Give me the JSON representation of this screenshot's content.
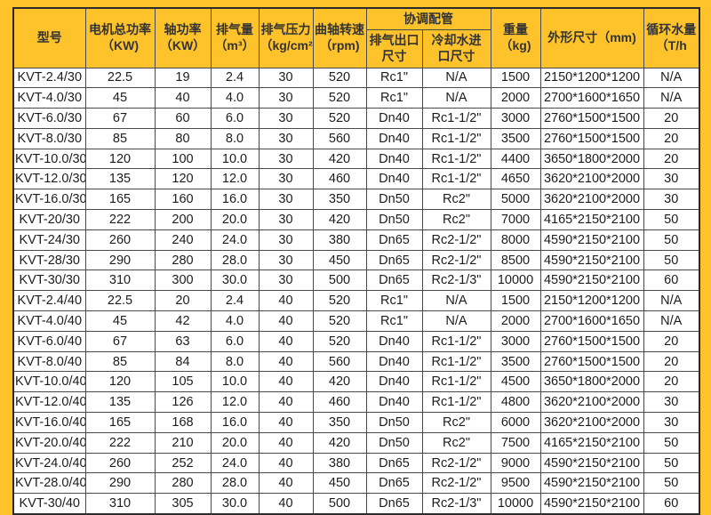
{
  "page": {
    "background_color": "#fec32b",
    "header_background": "#fec32b",
    "grid_border_color": "#4a4a4a",
    "outer_border_color": "#2b2b2b"
  },
  "table": {
    "header": {
      "model": "型号",
      "motor_power": "电机总功率\n（KW)",
      "shaft_power": "轴功率\n（KW）",
      "displacement": "排气量\n（m³）",
      "pressure": "排气压力\n（kg/cm²）",
      "speed": "曲轴转速\n（rpm)",
      "piping_group": "协调配管",
      "outlet": "排气出口\n尺寸",
      "inlet": "冷却水进\n口尺寸",
      "weight": "重量\n（kg)",
      "dimensions": "外形尺寸（mm)",
      "water": "循环水量\n（T/h"
    },
    "rows": [
      [
        "KVT-2.4/30",
        "22.5",
        "19",
        "2.4",
        "30",
        "520",
        "Rc1\"",
        "N/A",
        "1500",
        "2150*1200*1200",
        "N/A"
      ],
      [
        "KVT-4.0/30",
        "45",
        "40",
        "4.0",
        "30",
        "520",
        "Rc1\"",
        "N/A",
        "2000",
        "2700*1600*1650",
        "N/A"
      ],
      [
        "KVT-6.0/30",
        "67",
        "60",
        "6.0",
        "30",
        "520",
        "Dn40",
        "Rc1-1/2\"",
        "3000",
        "2760*1500*1500",
        "20"
      ],
      [
        "KVT-8.0/30",
        "85",
        "80",
        "8.0",
        "30",
        "560",
        "Dn40",
        "Rc1-1/2\"",
        "3500",
        "2760*1500*1500",
        "20"
      ],
      [
        "KVT-10.0/30",
        "120",
        "100",
        "10.0",
        "30",
        "420",
        "Dn40",
        "Rc1-1/2\"",
        "4400",
        "3650*1800*2000",
        "20"
      ],
      [
        "KVT-12.0/30",
        "135",
        "120",
        "12.0",
        "30",
        "460",
        "Dn40",
        "Rc1-1/2\"",
        "4650",
        "3620*2100*2000",
        "30"
      ],
      [
        "KVT-16.0/30",
        "165",
        "160",
        "16.0",
        "30",
        "350",
        "Dn50",
        "Rc2\"",
        "5000",
        "3620*2100*2000",
        "30"
      ],
      [
        "KVT-20/30",
        "222",
        "200",
        "20.0",
        "30",
        "420",
        "Dn50",
        "Rc2\"",
        "7000",
        "4165*2150*2100",
        "50"
      ],
      [
        "KVT-24/30",
        "260",
        "240",
        "24.0",
        "30",
        "380",
        "Dn65",
        "Rc2-1/2\"",
        "8000",
        "4590*2150*2100",
        "50"
      ],
      [
        "KVT-28/30",
        "290",
        "280",
        "28.0",
        "30",
        "450",
        "Dn65",
        "Rc2-1/2\"",
        "8500",
        "4590*2150*2100",
        "50"
      ],
      [
        "KVT-30/30",
        "310",
        "300",
        "30.0",
        "30",
        "500",
        "Dn65",
        "Rc2-1/3\"",
        "10000",
        "4590*2150*2100",
        "60"
      ],
      [
        "KVT-2.4/40",
        "22.5",
        "20",
        "2.4",
        "40",
        "520",
        "Rc1\"",
        "N/A",
        "1500",
        "2150*1200*1200",
        "N/A"
      ],
      [
        "KVT-4.0/40",
        "45",
        "42",
        "4.0",
        "40",
        "520",
        "Rc1\"",
        "N/A",
        "2000",
        "2700*1600*1650",
        "N/A"
      ],
      [
        "KVT-6.0/40",
        "67",
        "63",
        "6.0",
        "40",
        "520",
        "Dn40",
        "Rc1-1/2\"",
        "3000",
        "2760*1500*1500",
        "20"
      ],
      [
        "KVT-8.0/40",
        "85",
        "84",
        "8.0",
        "40",
        "560",
        "Dn40",
        "Rc1-1/2\"",
        "3500",
        "2760*1500*1500",
        "20"
      ],
      [
        "KVT-10.0/40",
        "120",
        "105",
        "10.0",
        "40",
        "420",
        "Dn40",
        "Rc1-1/2\"",
        "4500",
        "3650*1800*2000",
        "20"
      ],
      [
        "KVT-12.0/40",
        "135",
        "126",
        "12.0",
        "40",
        "460",
        "Dn40",
        "Rc1-1/2\"",
        "4800",
        "3620*2100*2000",
        "30"
      ],
      [
        "KVT-16.0/40",
        "165",
        "168",
        "16.0",
        "40",
        "350",
        "Dn50",
        "Rc2\"",
        "6000",
        "3620*2100*2000",
        "30"
      ],
      [
        "KVT-20.0/40",
        "222",
        "210",
        "20.0",
        "40",
        "420",
        "Dn50",
        "Rc2\"",
        "7500",
        "4165*2150*2100",
        "50"
      ],
      [
        "KVT-24.0/40",
        "260",
        "252",
        "24.0",
        "40",
        "380",
        "Dn65",
        "Rc2-1/2\"",
        "9000",
        "4590*2150*2100",
        "50"
      ],
      [
        "KVT-28.0/40",
        "290",
        "280",
        "28.0",
        "40",
        "450",
        "Dn65",
        "Rc2-1/2\"",
        "9500",
        "4590*2150*2100",
        "50"
      ],
      [
        "KVT-30/40",
        "310",
        "305",
        "30.0",
        "40",
        "500",
        "Dn65",
        "Rc2-1/3\"",
        "10000",
        "4590*2150*2100",
        "60"
      ]
    ]
  }
}
